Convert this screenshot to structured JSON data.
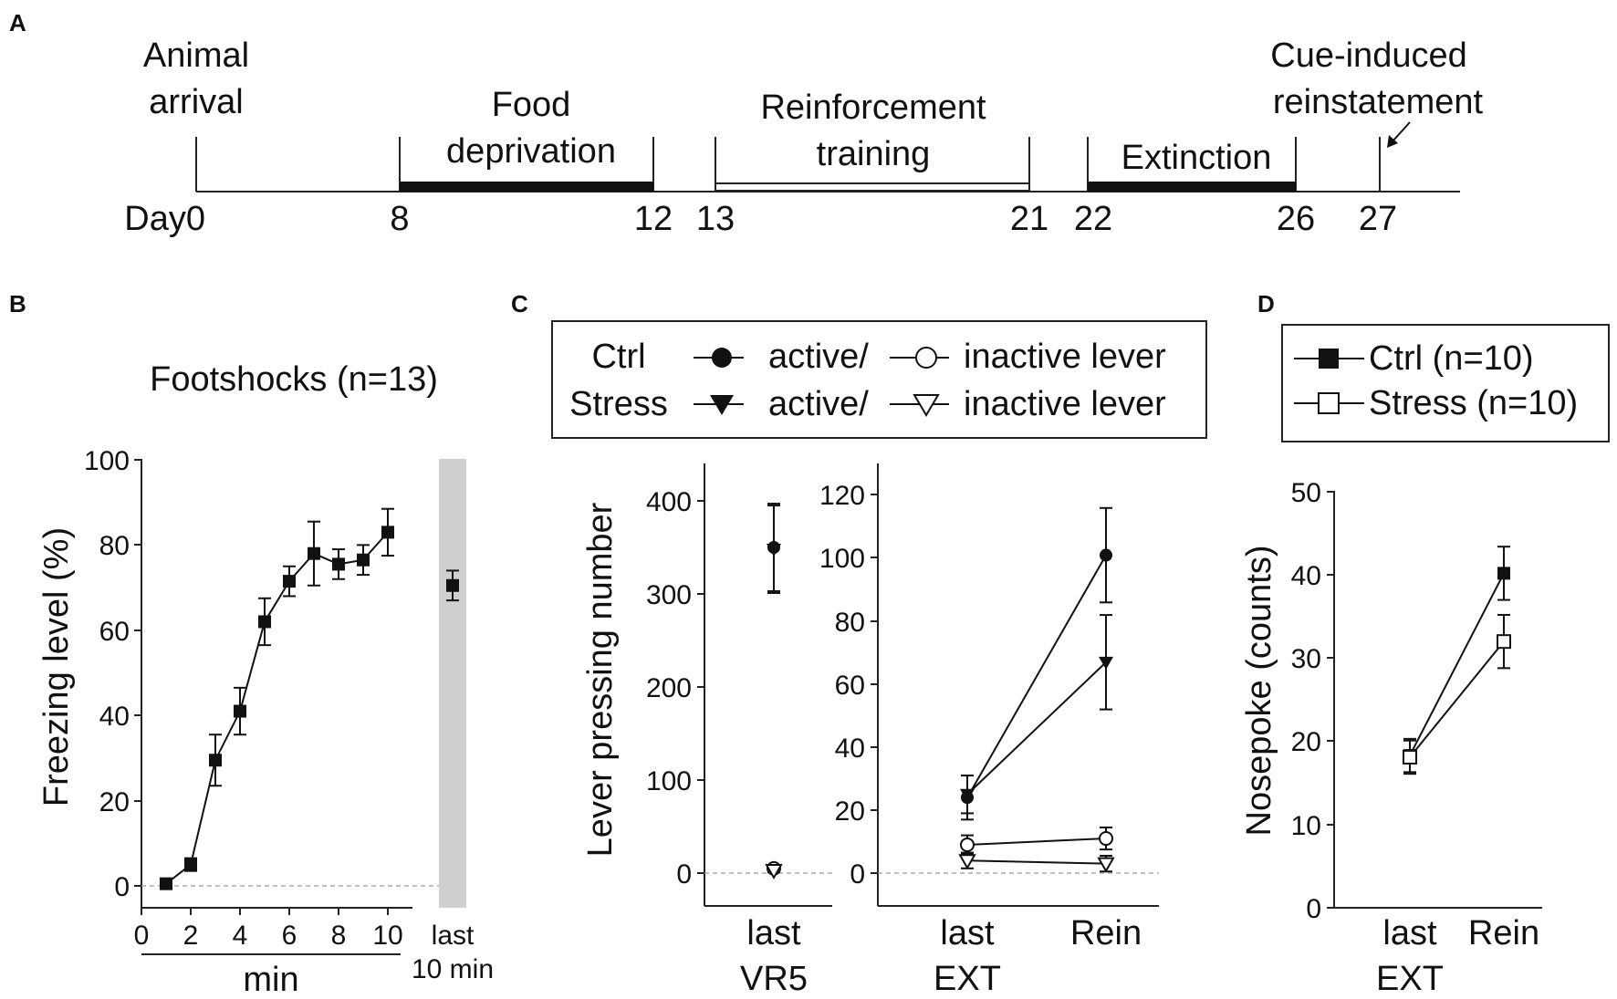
{
  "panels": {
    "a": {
      "letter": "A",
      "day_label": "Day0",
      "day_ticks": [
        "8",
        "12",
        "13",
        "21",
        "22",
        "26",
        "27"
      ],
      "phases": [
        {
          "label_lines": [
            "Animal",
            "arrival"
          ]
        },
        {
          "label_lines": [
            "Food",
            "deprivation"
          ]
        },
        {
          "label_lines": [
            "Reinforcement",
            "training"
          ]
        },
        {
          "label_lines": [
            "Extinction"
          ]
        },
        {
          "label_lines": [
            "Cue-induced",
            "reinstatement"
          ]
        }
      ]
    },
    "b": {
      "letter": "B",
      "title": "Footshocks (n=13)",
      "ylabel": "Freezing level (%)",
      "xlabel": "min",
      "yticks": [
        "0",
        "20",
        "40",
        "60",
        "80",
        "100"
      ],
      "xticks": [
        "0",
        "2",
        "4",
        "6",
        "8",
        "10"
      ],
      "last_label_lines": [
        "last",
        "10 min"
      ]
    },
    "c": {
      "letter": "C",
      "ylabel": "Lever pressing number",
      "legend": {
        "rows": [
          {
            "group": "Ctrl",
            "active": "active/",
            "inactive": "inactive lever"
          },
          {
            "group": "Stress",
            "active": "active/",
            "inactive": "inactive lever"
          }
        ]
      },
      "left_yticks": [
        "0",
        "100",
        "200",
        "300",
        "400"
      ],
      "left_xlabel_lines": [
        "last",
        "VR5"
      ],
      "right_yticks": [
        "0",
        "20",
        "40",
        "60",
        "80",
        "100",
        "120"
      ],
      "right_xticks": [
        "last",
        "Rein"
      ],
      "right_xsub": "EXT"
    },
    "d": {
      "letter": "D",
      "ylabel": "Nosepoke (counts)",
      "legend": [
        {
          "label": "Ctrl (n=10)"
        },
        {
          "label": "Stress (n=10)"
        }
      ],
      "yticks": [
        "0",
        "10",
        "20",
        "30",
        "40",
        "50"
      ],
      "xticks": [
        "last",
        "Rein"
      ],
      "xsub": "EXT"
    }
  },
  "chart_data": [
    {
      "type": "timeline",
      "panel": "A",
      "unit": "day",
      "events": [
        {
          "day": 0,
          "label": "Animal arrival"
        },
        {
          "day": 27,
          "label": "Cue-induced reinstatement"
        }
      ],
      "phases": [
        {
          "label": "Food deprivation",
          "start": 8,
          "end": 12,
          "style": "filled"
        },
        {
          "label": "Reinforcement training",
          "start": 13,
          "end": 21,
          "style": "open"
        },
        {
          "label": "Extinction",
          "start": 22,
          "end": 26,
          "style": "filled"
        }
      ]
    },
    {
      "type": "line",
      "panel": "B",
      "title": "Footshocks (n=13)",
      "xlabel": "min",
      "ylabel": "Freezing level (%)",
      "xlim": [
        0,
        10.5
      ],
      "ylim": [
        0,
        100
      ],
      "series": [
        {
          "name": "Footshocks (n=13)",
          "x": [
            1,
            2,
            3,
            4,
            5,
            6,
            7,
            8,
            9,
            10
          ],
          "y": [
            0.5,
            5,
            29.5,
            41,
            62,
            71.5,
            78,
            75.5,
            76.5,
            83
          ],
          "err": [
            1,
            1.5,
            6,
            5.5,
            5.5,
            3.5,
            7.5,
            3.5,
            3.5,
            5.5
          ]
        }
      ],
      "last_10_min": {
        "label": "last 10 min",
        "y": 70.5,
        "err": 3.5
      }
    },
    {
      "type": "scatter",
      "panel": "C-left",
      "ylabel": "Lever pressing number",
      "categories": [
        "last VR5"
      ],
      "ylim": [
        0,
        440
      ],
      "series": [
        {
          "name": "Ctrl active lever",
          "marker": "filled-circle",
          "values": [
            350
          ],
          "err": [
            47
          ]
        },
        {
          "name": "Ctrl inactive lever",
          "marker": "open-circle",
          "values": [
            5
          ],
          "err": [
            2
          ]
        },
        {
          "name": "Stress active lever",
          "marker": "filled-triangle",
          "values": [
            348
          ],
          "err": [
            47
          ]
        },
        {
          "name": "Stress inactive lever",
          "marker": "open-triangle",
          "values": [
            3
          ],
          "err": [
            2
          ]
        }
      ]
    },
    {
      "type": "line",
      "panel": "C-right",
      "categories": [
        "last EXT",
        "Rein"
      ],
      "ylim": [
        0,
        130
      ],
      "series": [
        {
          "name": "Ctrl active lever",
          "marker": "filled-circle",
          "values": [
            24,
            101
          ],
          "err": [
            7,
            15
          ]
        },
        {
          "name": "Stress active lever",
          "marker": "filled-triangle",
          "values": [
            25,
            67
          ],
          "err": [
            6,
            15
          ]
        },
        {
          "name": "Ctrl inactive lever",
          "marker": "open-circle",
          "values": [
            9,
            11
          ],
          "err": [
            3,
            3.5
          ]
        },
        {
          "name": "Stress inactive lever",
          "marker": "open-triangle",
          "values": [
            4,
            3
          ],
          "err": [
            2.5,
            2.5
          ]
        }
      ]
    },
    {
      "type": "line",
      "panel": "D",
      "ylabel": "Nosepoke (counts)",
      "categories": [
        "last EXT",
        "Rein"
      ],
      "ylim": [
        0,
        50
      ],
      "series": [
        {
          "name": "Ctrl (n=10)",
          "marker": "filled-square",
          "values": [
            18.3,
            40.2
          ],
          "err": [
            2,
            3.2
          ]
        },
        {
          "name": "Stress (n=10)",
          "marker": "open-square",
          "values": [
            18.1,
            32
          ],
          "err": [
            2,
            3.2
          ]
        }
      ]
    }
  ]
}
